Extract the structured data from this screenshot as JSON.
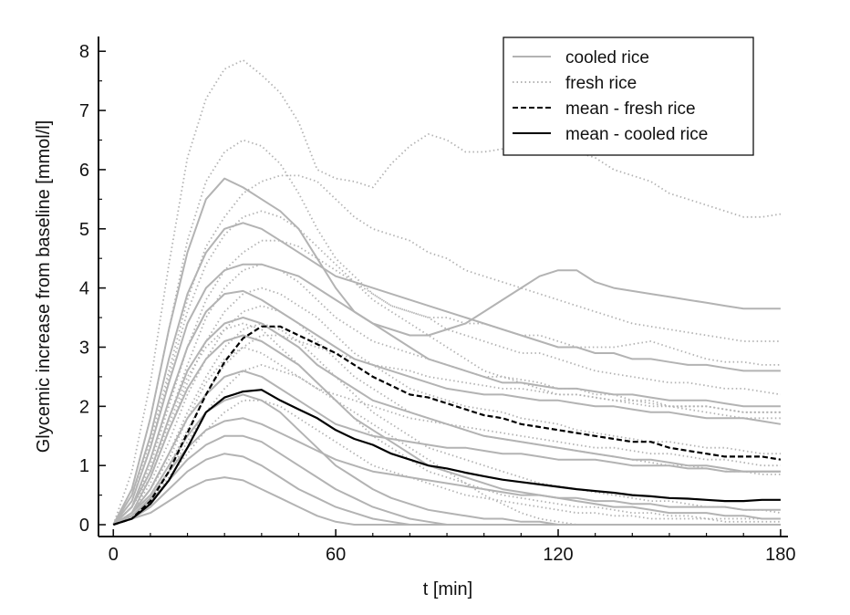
{
  "chart_data": {
    "type": "line",
    "title": "",
    "xlabel": "t [min]",
    "ylabel": "Glycemic increase from baseline [mmol/l]",
    "xlim": [
      -4,
      182
    ],
    "ylim": [
      -0.2,
      8.25
    ],
    "xticks": [
      0,
      60,
      120,
      180
    ],
    "xticks_labels": [
      "0",
      "60",
      "120",
      "180"
    ],
    "yticks": [
      0,
      1,
      2,
      3,
      4,
      5,
      6,
      7,
      8
    ],
    "yticks_labels": [
      "0",
      "1",
      "2",
      "3",
      "4",
      "5",
      "6",
      "7",
      "8"
    ],
    "legend": {
      "position": "top-right",
      "entries": [
        "cooled rice",
        "fresh rice",
        "mean - fresh rice",
        "mean - cooled rice"
      ]
    },
    "colors": {
      "individual": "#b3b3b3",
      "mean": "#000000"
    },
    "x": [
      0,
      5,
      10,
      15,
      20,
      25,
      30,
      35,
      40,
      45,
      50,
      55,
      60,
      65,
      70,
      75,
      80,
      85,
      90,
      95,
      100,
      105,
      110,
      115,
      120,
      125,
      130,
      135,
      140,
      145,
      150,
      155,
      160,
      165,
      170,
      175,
      180
    ],
    "series": [
      {
        "name": "mean - fresh rice",
        "style": "dashed",
        "values": [
          0,
          0.1,
          0.4,
          0.9,
          1.55,
          2.2,
          2.75,
          3.15,
          3.35,
          3.35,
          3.2,
          3.05,
          2.9,
          2.7,
          2.5,
          2.35,
          2.2,
          2.15,
          2.05,
          1.95,
          1.85,
          1.8,
          1.7,
          1.65,
          1.6,
          1.55,
          1.5,
          1.45,
          1.4,
          1.4,
          1.3,
          1.25,
          1.2,
          1.15,
          1.15,
          1.15,
          1.1
        ]
      },
      {
        "name": "mean - cooled rice",
        "style": "solid",
        "values": [
          0,
          0.1,
          0.35,
          0.75,
          1.3,
          1.9,
          2.15,
          2.25,
          2.28,
          2.1,
          1.95,
          1.8,
          1.6,
          1.45,
          1.35,
          1.2,
          1.1,
          1.0,
          0.95,
          0.88,
          0.82,
          0.76,
          0.72,
          0.68,
          0.64,
          0.6,
          0.57,
          0.54,
          0.5,
          0.48,
          0.45,
          0.44,
          0.42,
          0.4,
          0.4,
          0.42,
          0.42
        ]
      },
      {
        "name": "fresh rice",
        "style": "dotted",
        "values": [
          0,
          0.9,
          2.4,
          4.4,
          6.2,
          7.2,
          7.7,
          7.85,
          7.6,
          7.3,
          6.8,
          6.0,
          5.85,
          5.8,
          5.7,
          6.1,
          6.4,
          6.6,
          6.5,
          6.3,
          6.3,
          6.35,
          6.5,
          6.4,
          6.3,
          6.3,
          6.2,
          6.0,
          5.9,
          5.8,
          5.6,
          5.5,
          5.4,
          5.3,
          5.2,
          5.2,
          5.25
        ]
      },
      {
        "name": "fresh rice",
        "style": "dotted",
        "values": [
          0,
          0.6,
          1.8,
          3.3,
          4.8,
          5.8,
          6.3,
          6.5,
          6.4,
          6.1,
          5.6,
          5.0,
          4.5,
          4.2,
          3.9,
          3.7,
          3.6,
          3.5,
          3.5,
          3.4,
          3.4,
          3.3,
          3.2,
          3.2,
          3.1,
          3.0,
          3.0,
          3.0,
          3.05,
          3.1,
          3.0,
          2.9,
          2.8,
          2.75,
          2.75,
          2.7,
          2.7
        ]
      },
      {
        "name": "fresh rice",
        "style": "dotted",
        "values": [
          0,
          0.5,
          1.4,
          2.6,
          3.8,
          4.7,
          5.2,
          5.6,
          5.8,
          5.9,
          5.9,
          5.8,
          5.5,
          5.2,
          5.0,
          4.9,
          4.8,
          4.6,
          4.5,
          4.3,
          4.2,
          4.1,
          4.0,
          3.9,
          3.8,
          3.7,
          3.6,
          3.5,
          3.4,
          3.35,
          3.3,
          3.25,
          3.2,
          3.15,
          3.1,
          3.1,
          3.1
        ]
      },
      {
        "name": "fresh rice",
        "style": "dotted",
        "values": [
          0,
          0.4,
          1.3,
          2.5,
          3.6,
          4.4,
          4.9,
          5.2,
          5.3,
          5.2,
          5.0,
          4.7,
          4.4,
          4.1,
          3.9,
          3.7,
          3.6,
          3.5,
          3.3,
          3.2,
          3.1,
          3.0,
          2.9,
          2.9,
          2.8,
          2.7,
          2.6,
          2.55,
          2.5,
          2.45,
          2.4,
          2.4,
          2.35,
          2.3,
          2.3,
          2.25,
          2.2
        ]
      },
      {
        "name": "fresh rice",
        "style": "dotted",
        "values": [
          0,
          0.3,
          1.0,
          2.0,
          3.0,
          3.8,
          4.3,
          4.6,
          4.8,
          4.8,
          4.7,
          4.5,
          4.3,
          4.1,
          3.8,
          3.6,
          3.4,
          3.2,
          3.0,
          2.8,
          2.6,
          2.5,
          2.4,
          2.3,
          2.2,
          2.2,
          2.15,
          2.1,
          2.05,
          2.0,
          2.0,
          1.95,
          1.9,
          1.85,
          1.8,
          1.8,
          1.8
        ]
      },
      {
        "name": "fresh rice",
        "style": "dotted",
        "values": [
          0,
          0.3,
          0.9,
          1.8,
          2.7,
          3.5,
          4.0,
          4.3,
          4.4,
          4.3,
          4.1,
          3.8,
          3.5,
          3.3,
          3.1,
          3.0,
          2.9,
          2.8,
          2.7,
          2.6,
          2.5,
          2.5,
          2.45,
          2.4,
          2.3,
          2.3,
          2.2,
          2.2,
          2.1,
          2.1,
          2.0,
          2.0,
          2.0,
          1.95,
          1.9,
          1.9,
          1.9
        ]
      },
      {
        "name": "fresh rice",
        "style": "dotted",
        "values": [
          0,
          0.3,
          0.8,
          1.6,
          2.4,
          3.1,
          3.6,
          3.9,
          4.0,
          3.9,
          3.7,
          3.5,
          3.2,
          2.9,
          2.7,
          2.5,
          2.3,
          2.2,
          2.1,
          2.0,
          1.95,
          1.9,
          1.8,
          1.75,
          1.7,
          1.6,
          1.55,
          1.5,
          1.45,
          1.4,
          1.4,
          1.35,
          1.3,
          1.3,
          1.25,
          1.2,
          1.2
        ]
      },
      {
        "name": "fresh rice",
        "style": "dotted",
        "values": [
          0,
          0.2,
          0.7,
          1.4,
          2.2,
          2.8,
          3.3,
          3.6,
          3.7,
          3.6,
          3.4,
          3.1,
          2.8,
          2.5,
          2.3,
          2.1,
          1.9,
          1.8,
          1.7,
          1.6,
          1.5,
          1.45,
          1.4,
          1.35,
          1.3,
          1.25,
          1.2,
          1.15,
          1.1,
          1.05,
          1.0,
          1.0,
          0.95,
          0.9,
          0.9,
          0.85,
          0.85
        ]
      },
      {
        "name": "fresh rice",
        "style": "dotted",
        "values": [
          0,
          0.2,
          0.6,
          1.2,
          1.9,
          2.5,
          3.0,
          3.3,
          3.4,
          3.3,
          3.1,
          2.8,
          2.5,
          2.2,
          1.9,
          1.7,
          1.5,
          1.3,
          1.2,
          1.1,
          1.0,
          0.9,
          0.8,
          0.7,
          0.65,
          0.6,
          0.55,
          0.5,
          0.45,
          0.4,
          0.4,
          0.35,
          0.3,
          0.3,
          0.25,
          0.25,
          0.2
        ]
      },
      {
        "name": "fresh rice",
        "style": "dotted",
        "values": [
          0,
          0.3,
          0.9,
          1.7,
          2.5,
          3.0,
          3.3,
          3.4,
          3.3,
          3.0,
          2.7,
          2.4,
          2.1,
          1.8,
          1.5,
          1.3,
          1.1,
          0.9,
          0.8,
          0.7,
          0.6,
          0.5,
          0.45,
          0.4,
          0.35,
          0.3,
          0.3,
          0.25,
          0.2,
          0.2,
          0.15,
          0.15,
          0.1,
          0.1,
          0.1,
          0.1,
          0.1
        ]
      },
      {
        "name": "fresh rice",
        "style": "dotted",
        "values": [
          0,
          0.2,
          0.5,
          1.0,
          1.6,
          2.2,
          2.7,
          3.0,
          3.2,
          3.2,
          3.1,
          3.0,
          2.9,
          2.8,
          2.7,
          2.65,
          2.6,
          2.5,
          2.45,
          2.4,
          2.35,
          2.3,
          2.3,
          2.25,
          2.2,
          2.2,
          2.15,
          2.1,
          2.1,
          2.05,
          2.0,
          2.0,
          2.0,
          1.95,
          1.9,
          1.9,
          1.9
        ]
      },
      {
        "name": "fresh rice",
        "style": "dotted",
        "values": [
          0,
          0.2,
          0.6,
          1.1,
          1.8,
          2.4,
          2.8,
          3.0,
          2.9,
          2.7,
          2.5,
          2.3,
          2.1,
          1.9,
          1.7,
          1.5,
          1.3,
          1.1,
          0.9,
          0.7,
          0.5,
          0.35,
          0.2,
          0.1,
          0.05,
          0.0,
          0.0,
          0.0,
          0.0,
          0.0,
          0.0,
          0.0,
          0.0,
          0.0,
          0.0,
          0.0,
          0.0
        ]
      },
      {
        "name": "fresh rice",
        "style": "dotted",
        "values": [
          0,
          0.2,
          0.5,
          0.9,
          1.4,
          1.9,
          2.3,
          2.6,
          2.7,
          2.6,
          2.5,
          2.3,
          2.2,
          2.1,
          2.0,
          1.9,
          1.8,
          1.75,
          1.7,
          1.65,
          1.6,
          1.55,
          1.5,
          1.45,
          1.4,
          1.35,
          1.3,
          1.3,
          1.25,
          1.2,
          1.2,
          1.15,
          1.1,
          1.1,
          1.05,
          1.0,
          1.0
        ]
      },
      {
        "name": "fresh rice",
        "style": "dotted",
        "values": [
          0,
          0.1,
          0.4,
          0.8,
          1.2,
          1.6,
          1.9,
          2.1,
          2.1,
          2.0,
          1.8,
          1.6,
          1.4,
          1.2,
          1.0,
          0.9,
          0.8,
          0.7,
          0.6,
          0.5,
          0.45,
          0.4,
          0.35,
          0.3,
          0.25,
          0.2,
          0.2,
          0.15,
          0.15,
          0.1,
          0.1,
          0.1,
          0.1,
          0.05,
          0.05,
          0.05,
          0.05
        ]
      },
      {
        "name": "cooled rice",
        "style": "solid",
        "values": [
          0,
          0.6,
          1.8,
          3.3,
          4.6,
          5.5,
          5.85,
          5.7,
          5.5,
          5.3,
          5.0,
          4.5,
          4.0,
          3.6,
          3.4,
          3.3,
          3.2,
          3.2,
          3.3,
          3.4,
          3.6,
          3.8,
          4.0,
          4.2,
          4.3,
          4.3,
          4.1,
          4.0,
          3.95,
          3.9,
          3.85,
          3.8,
          3.75,
          3.7,
          3.65,
          3.65,
          3.65
        ]
      },
      {
        "name": "cooled rice",
        "style": "solid",
        "values": [
          0,
          0.5,
          1.5,
          2.8,
          3.9,
          4.6,
          5.0,
          5.1,
          5.0,
          4.8,
          4.6,
          4.4,
          4.2,
          4.1,
          4.0,
          3.9,
          3.8,
          3.7,
          3.6,
          3.5,
          3.4,
          3.3,
          3.2,
          3.1,
          3.0,
          3.0,
          2.9,
          2.9,
          2.8,
          2.8,
          2.75,
          2.7,
          2.7,
          2.65,
          2.6,
          2.6,
          2.6
        ]
      },
      {
        "name": "cooled rice",
        "style": "solid",
        "values": [
          0,
          0.4,
          1.3,
          2.4,
          3.4,
          4.0,
          4.3,
          4.4,
          4.4,
          4.3,
          4.2,
          4.0,
          3.8,
          3.6,
          3.4,
          3.2,
          3.0,
          2.8,
          2.7,
          2.6,
          2.5,
          2.4,
          2.4,
          2.35,
          2.3,
          2.3,
          2.25,
          2.2,
          2.2,
          2.15,
          2.1,
          2.1,
          2.1,
          2.05,
          2.0,
          2.0,
          2.0
        ]
      },
      {
        "name": "cooled rice",
        "style": "solid",
        "values": [
          0,
          0.3,
          1.1,
          2.1,
          3.0,
          3.6,
          3.9,
          3.95,
          3.8,
          3.6,
          3.4,
          3.2,
          3.0,
          2.8,
          2.7,
          2.6,
          2.5,
          2.4,
          2.3,
          2.25,
          2.2,
          2.2,
          2.15,
          2.1,
          2.1,
          2.05,
          2.0,
          2.0,
          1.95,
          1.9,
          1.9,
          1.85,
          1.8,
          1.8,
          1.8,
          1.75,
          1.7
        ]
      },
      {
        "name": "cooled rice",
        "style": "solid",
        "values": [
          0,
          0.3,
          0.9,
          1.8,
          2.6,
          3.1,
          3.4,
          3.5,
          3.4,
          3.2,
          3.0,
          2.7,
          2.5,
          2.3,
          2.1,
          2.0,
          1.9,
          1.8,
          1.7,
          1.6,
          1.5,
          1.45,
          1.4,
          1.35,
          1.3,
          1.25,
          1.2,
          1.15,
          1.1,
          1.1,
          1.05,
          1.0,
          1.0,
          0.95,
          0.9,
          0.9,
          0.9
        ]
      },
      {
        "name": "cooled rice",
        "style": "solid",
        "values": [
          0,
          0.2,
          0.8,
          1.6,
          2.3,
          2.8,
          3.1,
          3.2,
          3.1,
          2.9,
          2.7,
          2.4,
          2.1,
          1.8,
          1.6,
          1.4,
          1.2,
          1.0,
          0.9,
          0.8,
          0.7,
          0.6,
          0.55,
          0.5,
          0.45,
          0.4,
          0.35,
          0.3,
          0.3,
          0.25,
          0.2,
          0.2,
          0.2,
          0.15,
          0.15,
          0.1,
          0.1
        ]
      },
      {
        "name": "cooled rice",
        "style": "solid",
        "values": [
          0,
          0.2,
          0.6,
          1.2,
          1.8,
          2.2,
          2.5,
          2.6,
          2.5,
          2.3,
          2.1,
          1.9,
          1.7,
          1.6,
          1.5,
          1.45,
          1.4,
          1.35,
          1.3,
          1.3,
          1.25,
          1.2,
          1.2,
          1.15,
          1.1,
          1.1,
          1.1,
          1.05,
          1.0,
          1.0,
          1.0,
          0.95,
          0.95,
          0.9,
          0.9,
          0.9,
          0.9
        ]
      },
      {
        "name": "cooled rice",
        "style": "solid",
        "values": [
          0,
          0.2,
          0.5,
          1.0,
          1.5,
          1.9,
          2.1,
          2.2,
          2.1,
          1.9,
          1.6,
          1.3,
          1.0,
          0.8,
          0.6,
          0.45,
          0.35,
          0.25,
          0.2,
          0.15,
          0.1,
          0.1,
          0.05,
          0.05,
          0.0,
          0.0,
          0.0,
          0.0,
          0.0,
          0.0,
          0.0,
          0.0,
          0.0,
          0.0,
          0.0,
          0.0,
          0.0
        ]
      },
      {
        "name": "cooled rice",
        "style": "solid",
        "values": [
          0,
          0.15,
          0.45,
          0.9,
          1.3,
          1.6,
          1.75,
          1.8,
          1.7,
          1.55,
          1.4,
          1.25,
          1.1,
          1.0,
          0.9,
          0.85,
          0.8,
          0.75,
          0.7,
          0.65,
          0.6,
          0.55,
          0.5,
          0.5,
          0.45,
          0.45,
          0.4,
          0.4,
          0.35,
          0.35,
          0.3,
          0.3,
          0.3,
          0.3,
          0.25,
          0.25,
          0.25
        ]
      },
      {
        "name": "cooled rice",
        "style": "solid",
        "values": [
          0,
          0.15,
          0.4,
          0.75,
          1.1,
          1.35,
          1.5,
          1.5,
          1.4,
          1.2,
          1.0,
          0.8,
          0.6,
          0.45,
          0.3,
          0.2,
          0.1,
          0.05,
          0.0,
          0.0,
          0.0,
          0.0,
          0.0,
          0.0,
          0.0,
          0.0,
          0.0,
          0.0,
          0.0,
          0.0,
          0.0,
          0.0,
          0.0,
          0.0,
          0.0,
          0.0,
          0.0
        ]
      },
      {
        "name": "cooled rice",
        "style": "solid",
        "values": [
          0,
          0.1,
          0.3,
          0.6,
          0.9,
          1.1,
          1.2,
          1.15,
          1.0,
          0.8,
          0.6,
          0.45,
          0.3,
          0.2,
          0.1,
          0.05,
          0.0,
          0.0,
          0.0,
          0.0,
          0.0,
          0.0,
          0.0,
          0.0,
          0.0,
          0.0,
          0.0,
          0.0,
          0.0,
          0.0,
          0.0,
          0.0,
          0.0,
          0.0,
          0.0,
          0.0,
          0.0
        ]
      },
      {
        "name": "cooled rice",
        "style": "solid",
        "values": [
          0,
          0.1,
          0.2,
          0.4,
          0.6,
          0.75,
          0.8,
          0.75,
          0.6,
          0.45,
          0.3,
          0.15,
          0.05,
          0.0,
          0.0,
          0.0,
          0.0,
          0.0,
          0.0,
          0.0,
          0.0,
          0.0,
          0.0,
          0.0,
          0.0,
          0.0,
          0.0,
          0.0,
          0.0,
          0.0,
          0.0,
          0.0,
          0.0,
          0.0,
          0.0,
          0.0,
          0.0
        ]
      }
    ]
  }
}
